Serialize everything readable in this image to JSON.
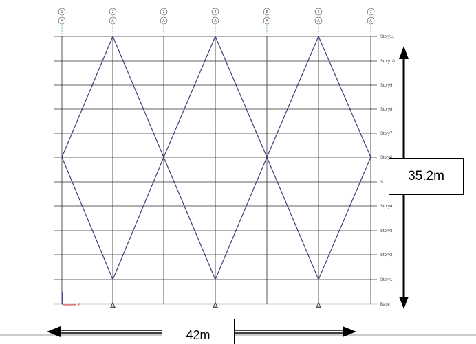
{
  "grid_lines": [
    {
      "id": "1",
      "axis": "A"
    },
    {
      "id": "2",
      "axis": "A"
    },
    {
      "id": "3",
      "axis": "A"
    },
    {
      "id": "4",
      "axis": "A"
    },
    {
      "id": "5",
      "axis": "A"
    },
    {
      "id": "6",
      "axis": "A"
    },
    {
      "id": "7",
      "axis": "A"
    }
  ],
  "stories": [
    "Story11",
    "Story10",
    "Story9",
    "Story8",
    "Story7",
    "Story6",
    "S",
    "Story4",
    "Story3",
    "Story2",
    "Story1",
    "Base"
  ],
  "axes": {
    "z_label": "Z",
    "y_label": "Y"
  },
  "dimensions": {
    "height": "35.2m",
    "width": "42m"
  },
  "colors": {
    "frame": "#2b2b2b",
    "brace": "#3d3f7a",
    "grid_marker": "#444444",
    "axis_z": "#3b3bd6",
    "axis_y": "#d93a3a"
  }
}
